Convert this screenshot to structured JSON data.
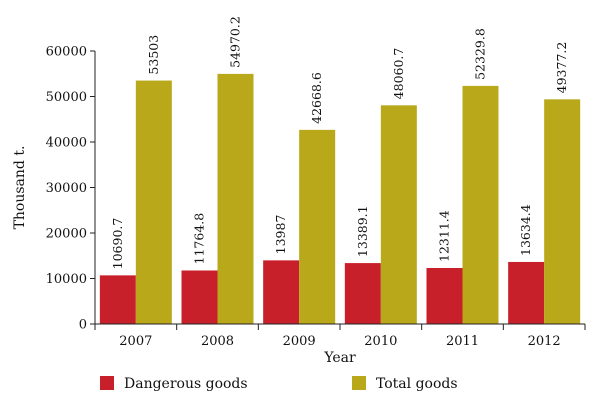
{
  "chart_data": {
    "type": "bar",
    "categories": [
      "2007",
      "2008",
      "2009",
      "2010",
      "2011",
      "2012"
    ],
    "series": [
      {
        "name": "Dangerous goods",
        "values": [
          10690.7,
          11764.8,
          13987,
          13389.1,
          12311.4,
          13634.4
        ],
        "labels": [
          "10690.7",
          "11764.8",
          "13987",
          "13389.1",
          "12311.4",
          "13634.4"
        ],
        "color": "#c8202a"
      },
      {
        "name": "Total goods",
        "values": [
          53503,
          54970.2,
          42668.6,
          48060.7,
          52329.8,
          49377.2
        ],
        "labels": [
          "53503",
          "54970.2",
          "42668.6",
          "48060.7",
          "52329.8",
          "49377.2"
        ],
        "color": "#b8a81a"
      }
    ],
    "xlabel": "Year",
    "ylabel": "Thousand t.",
    "ylim": [
      0,
      60000
    ],
    "yticks": [
      "0",
      "10000",
      "20000",
      "30000",
      "40000",
      "50000",
      "60000"
    ],
    "grid": false,
    "legend_position": "bottom"
  }
}
